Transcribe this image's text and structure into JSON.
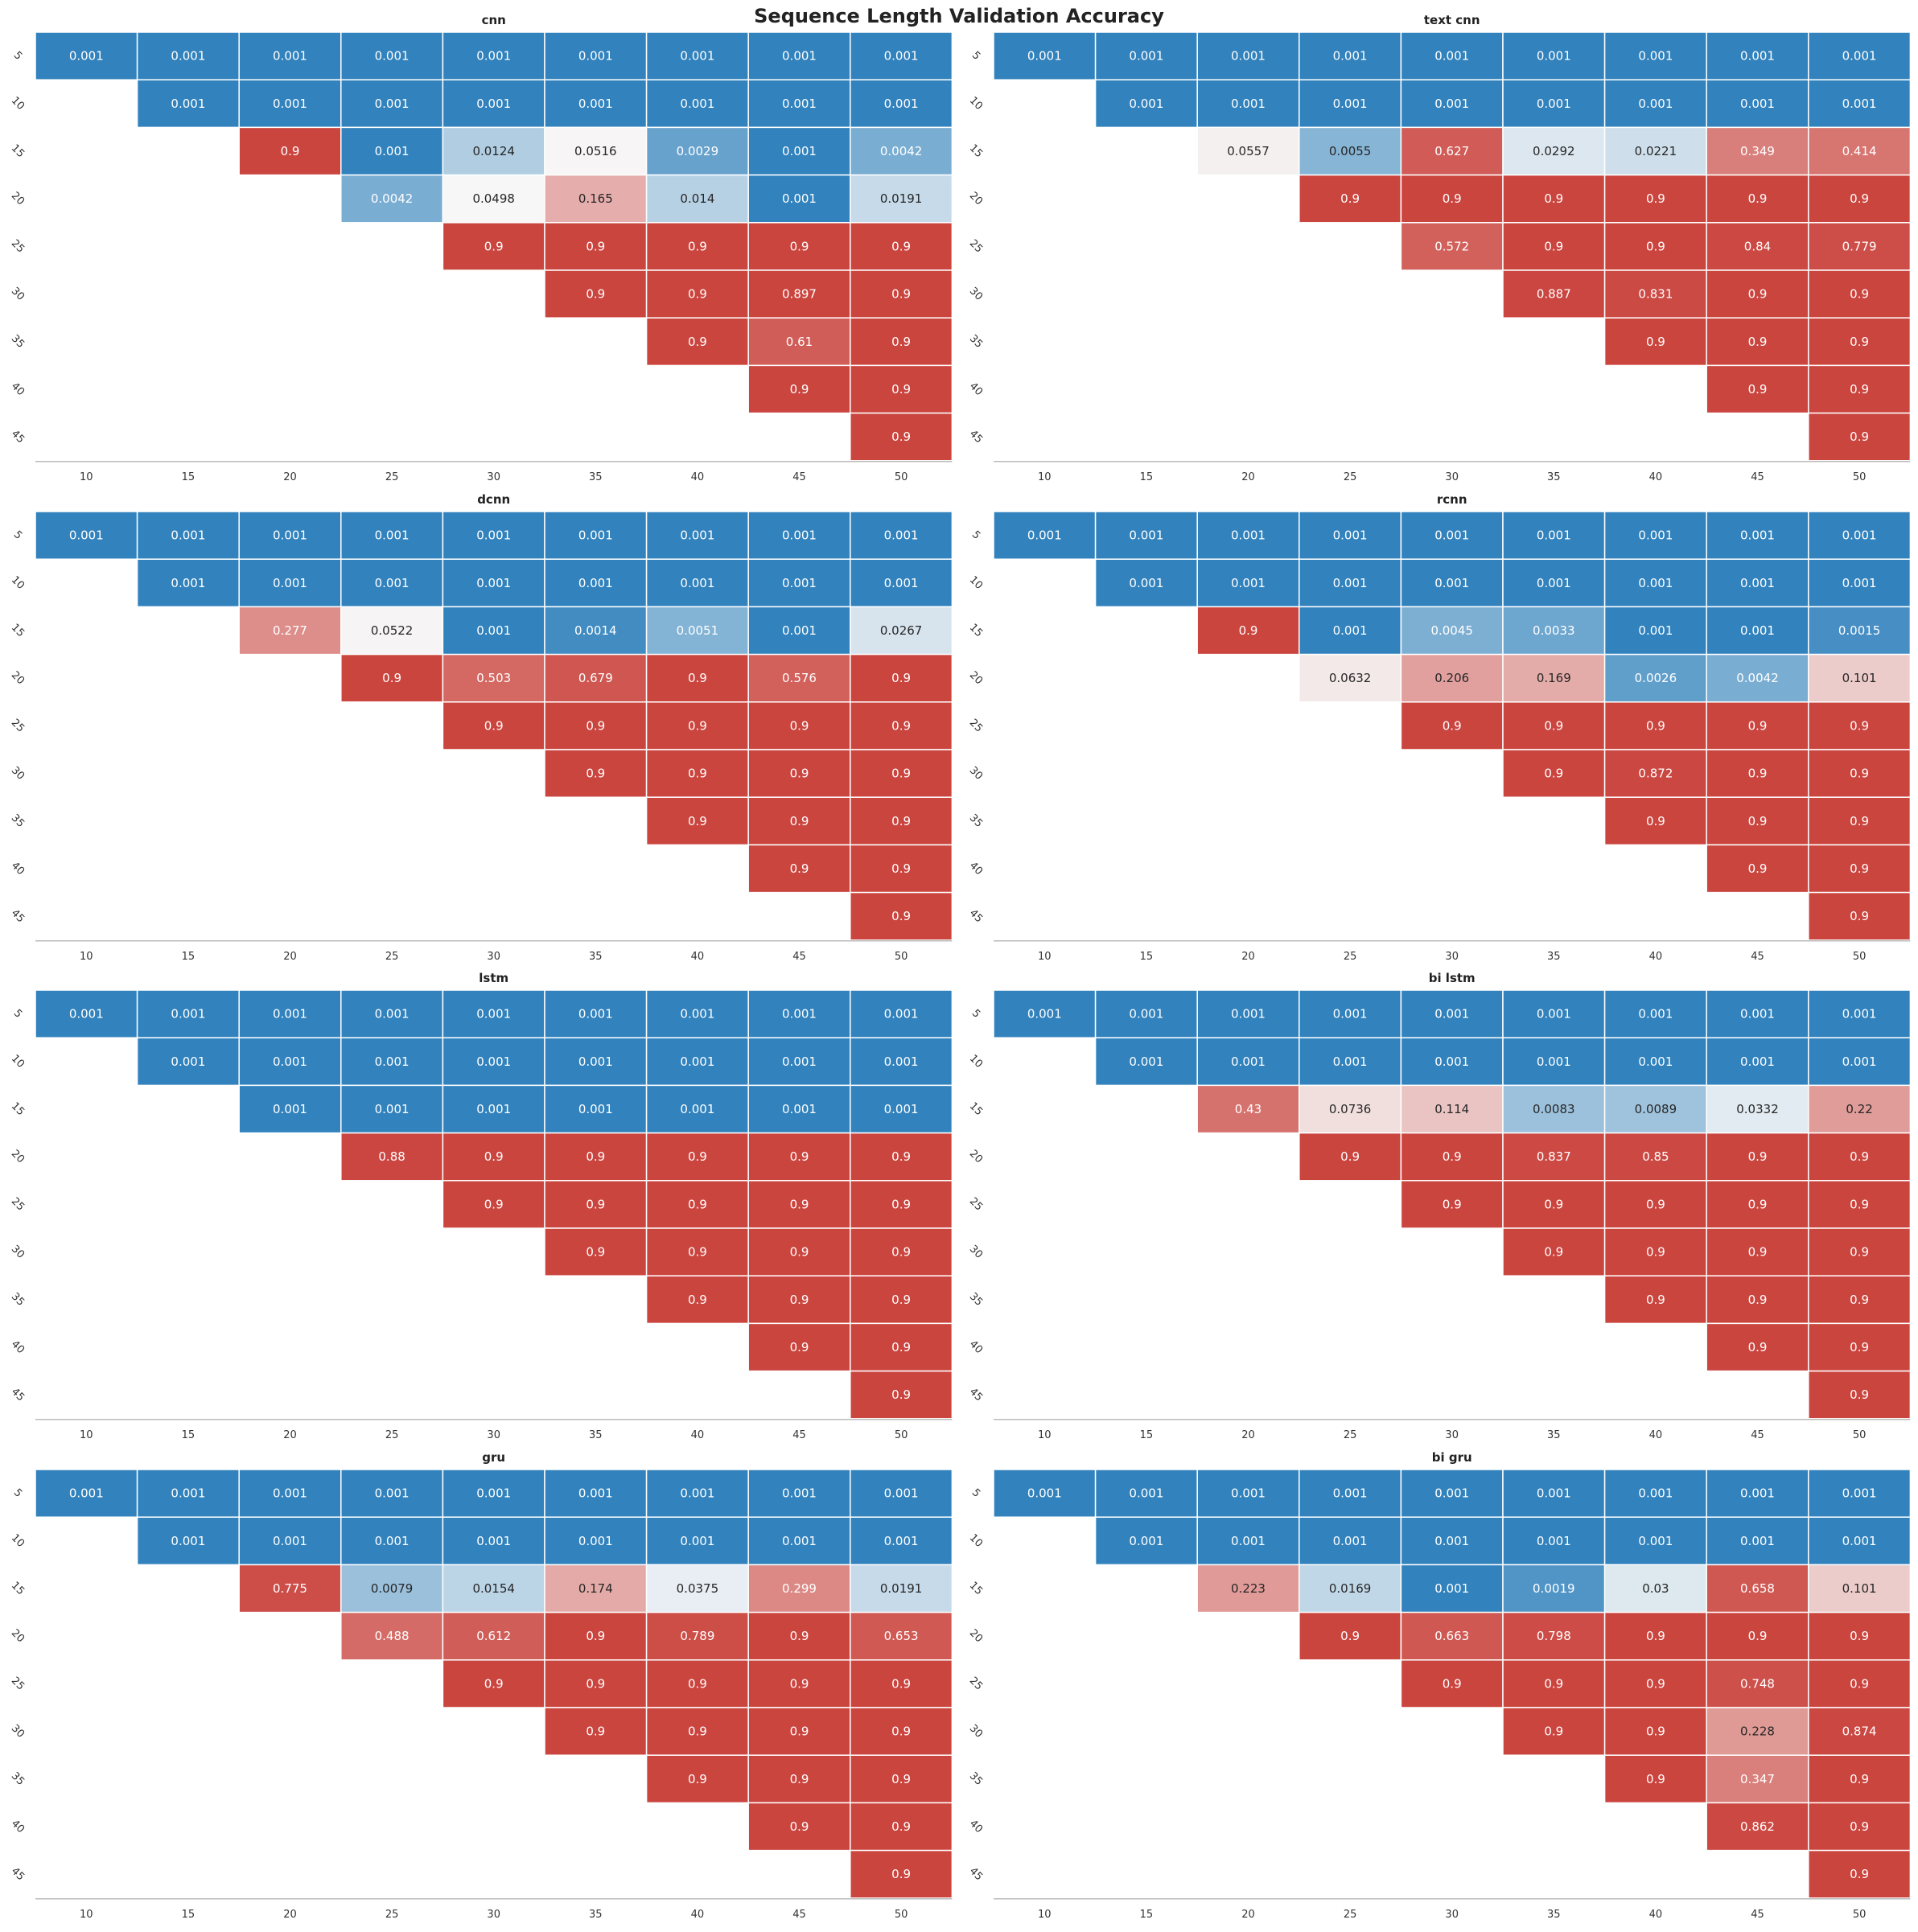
{
  "title": "Sequence Length Validation Accuracy",
  "colors": {
    "low": "#3182bd",
    "mid": "#f7f7f7",
    "high": "#cb453f",
    "grid": "#ffffff",
    "axis": "#bbbbbb"
  },
  "chart_data": [
    {
      "type": "heatmap",
      "title": "cnn",
      "x_ticks": [
        "10",
        "15",
        "20",
        "25",
        "30",
        "35",
        "40",
        "45",
        "50"
      ],
      "y_ticks": [
        "5",
        "10",
        "15",
        "20",
        "25",
        "30",
        "35",
        "40",
        "45"
      ],
      "colormap": "diverging blue-white-red",
      "cells": [
        [
          "0.001",
          "0.001",
          "0.001",
          "0.001",
          "0.001",
          "0.001",
          "0.001",
          "0.001",
          "0.001"
        ],
        [
          null,
          "0.001",
          "0.001",
          "0.001",
          "0.001",
          "0.001",
          "0.001",
          "0.001",
          "0.001"
        ],
        [
          null,
          null,
          "0.9",
          "0.001",
          "0.0124",
          "0.0516",
          "0.0029",
          "0.001",
          "0.0042"
        ],
        [
          null,
          null,
          null,
          "0.0042",
          "0.0498",
          "0.165",
          "0.014",
          "0.001",
          "0.0191"
        ],
        [
          null,
          null,
          null,
          null,
          "0.9",
          "0.9",
          "0.9",
          "0.9",
          "0.9"
        ],
        [
          null,
          null,
          null,
          null,
          null,
          "0.9",
          "0.9",
          "0.897",
          "0.9"
        ],
        [
          null,
          null,
          null,
          null,
          null,
          null,
          "0.9",
          "0.61",
          "0.9"
        ],
        [
          null,
          null,
          null,
          null,
          null,
          null,
          null,
          "0.9",
          "0.9"
        ],
        [
          null,
          null,
          null,
          null,
          null,
          null,
          null,
          null,
          "0.9"
        ]
      ]
    },
    {
      "type": "heatmap",
      "title": "text cnn",
      "x_ticks": [
        "10",
        "15",
        "20",
        "25",
        "30",
        "35",
        "40",
        "45",
        "50"
      ],
      "y_ticks": [
        "5",
        "10",
        "15",
        "20",
        "25",
        "30",
        "35",
        "40",
        "45"
      ],
      "colormap": "diverging blue-white-red",
      "cells": [
        [
          "0.001",
          "0.001",
          "0.001",
          "0.001",
          "0.001",
          "0.001",
          "0.001",
          "0.001",
          "0.001"
        ],
        [
          null,
          "0.001",
          "0.001",
          "0.001",
          "0.001",
          "0.001",
          "0.001",
          "0.001",
          "0.001"
        ],
        [
          null,
          null,
          "0.0557",
          "0.0055",
          "0.627",
          "0.0292",
          "0.0221",
          "0.349",
          "0.414"
        ],
        [
          null,
          null,
          null,
          "0.9",
          "0.9",
          "0.9",
          "0.9",
          "0.9",
          "0.9"
        ],
        [
          null,
          null,
          null,
          null,
          "0.572",
          "0.9",
          "0.9",
          "0.84",
          "0.779"
        ],
        [
          null,
          null,
          null,
          null,
          null,
          "0.887",
          "0.831",
          "0.9",
          "0.9"
        ],
        [
          null,
          null,
          null,
          null,
          null,
          null,
          "0.9",
          "0.9",
          "0.9"
        ],
        [
          null,
          null,
          null,
          null,
          null,
          null,
          null,
          "0.9",
          "0.9"
        ],
        [
          null,
          null,
          null,
          null,
          null,
          null,
          null,
          null,
          "0.9"
        ]
      ]
    },
    {
      "type": "heatmap",
      "title": "dcnn",
      "x_ticks": [
        "10",
        "15",
        "20",
        "25",
        "30",
        "35",
        "40",
        "45",
        "50"
      ],
      "y_ticks": [
        "5",
        "10",
        "15",
        "20",
        "25",
        "30",
        "35",
        "40",
        "45"
      ],
      "colormap": "diverging blue-white-red",
      "cells": [
        [
          "0.001",
          "0.001",
          "0.001",
          "0.001",
          "0.001",
          "0.001",
          "0.001",
          "0.001",
          "0.001"
        ],
        [
          null,
          "0.001",
          "0.001",
          "0.001",
          "0.001",
          "0.001",
          "0.001",
          "0.001",
          "0.001"
        ],
        [
          null,
          null,
          "0.277",
          "0.0522",
          "0.001",
          "0.0014",
          "0.0051",
          "0.001",
          "0.0267"
        ],
        [
          null,
          null,
          null,
          "0.9",
          "0.503",
          "0.679",
          "0.9",
          "0.576",
          "0.9"
        ],
        [
          null,
          null,
          null,
          null,
          "0.9",
          "0.9",
          "0.9",
          "0.9",
          "0.9"
        ],
        [
          null,
          null,
          null,
          null,
          null,
          "0.9",
          "0.9",
          "0.9",
          "0.9"
        ],
        [
          null,
          null,
          null,
          null,
          null,
          null,
          "0.9",
          "0.9",
          "0.9"
        ],
        [
          null,
          null,
          null,
          null,
          null,
          null,
          null,
          "0.9",
          "0.9"
        ],
        [
          null,
          null,
          null,
          null,
          null,
          null,
          null,
          null,
          "0.9"
        ]
      ]
    },
    {
      "type": "heatmap",
      "title": "rcnn",
      "x_ticks": [
        "10",
        "15",
        "20",
        "25",
        "30",
        "35",
        "40",
        "45",
        "50"
      ],
      "y_ticks": [
        "5",
        "10",
        "15",
        "20",
        "25",
        "30",
        "35",
        "40",
        "45"
      ],
      "colormap": "diverging blue-white-red",
      "cells": [
        [
          "0.001",
          "0.001",
          "0.001",
          "0.001",
          "0.001",
          "0.001",
          "0.001",
          "0.001",
          "0.001"
        ],
        [
          null,
          "0.001",
          "0.001",
          "0.001",
          "0.001",
          "0.001",
          "0.001",
          "0.001",
          "0.001"
        ],
        [
          null,
          null,
          "0.9",
          "0.001",
          "0.0045",
          "0.0033",
          "0.001",
          "0.001",
          "0.0015"
        ],
        [
          null,
          null,
          null,
          "0.0632",
          "0.206",
          "0.169",
          "0.0026",
          "0.0042",
          "0.101"
        ],
        [
          null,
          null,
          null,
          null,
          "0.9",
          "0.9",
          "0.9",
          "0.9",
          "0.9"
        ],
        [
          null,
          null,
          null,
          null,
          null,
          "0.9",
          "0.872",
          "0.9",
          "0.9"
        ],
        [
          null,
          null,
          null,
          null,
          null,
          null,
          "0.9",
          "0.9",
          "0.9"
        ],
        [
          null,
          null,
          null,
          null,
          null,
          null,
          null,
          "0.9",
          "0.9"
        ],
        [
          null,
          null,
          null,
          null,
          null,
          null,
          null,
          null,
          "0.9"
        ]
      ]
    },
    {
      "type": "heatmap",
      "title": "lstm",
      "x_ticks": [
        "10",
        "15",
        "20",
        "25",
        "30",
        "35",
        "40",
        "45",
        "50"
      ],
      "y_ticks": [
        "5",
        "10",
        "15",
        "20",
        "25",
        "30",
        "35",
        "40",
        "45"
      ],
      "colormap": "diverging blue-white-red",
      "cells": [
        [
          "0.001",
          "0.001",
          "0.001",
          "0.001",
          "0.001",
          "0.001",
          "0.001",
          "0.001",
          "0.001"
        ],
        [
          null,
          "0.001",
          "0.001",
          "0.001",
          "0.001",
          "0.001",
          "0.001",
          "0.001",
          "0.001"
        ],
        [
          null,
          null,
          "0.001",
          "0.001",
          "0.001",
          "0.001",
          "0.001",
          "0.001",
          "0.001"
        ],
        [
          null,
          null,
          null,
          "0.88",
          "0.9",
          "0.9",
          "0.9",
          "0.9",
          "0.9"
        ],
        [
          null,
          null,
          null,
          null,
          "0.9",
          "0.9",
          "0.9",
          "0.9",
          "0.9"
        ],
        [
          null,
          null,
          null,
          null,
          null,
          "0.9",
          "0.9",
          "0.9",
          "0.9"
        ],
        [
          null,
          null,
          null,
          null,
          null,
          null,
          "0.9",
          "0.9",
          "0.9"
        ],
        [
          null,
          null,
          null,
          null,
          null,
          null,
          null,
          "0.9",
          "0.9"
        ],
        [
          null,
          null,
          null,
          null,
          null,
          null,
          null,
          null,
          "0.9"
        ]
      ]
    },
    {
      "type": "heatmap",
      "title": "bi lstm",
      "x_ticks": [
        "10",
        "15",
        "20",
        "25",
        "30",
        "35",
        "40",
        "45",
        "50"
      ],
      "y_ticks": [
        "5",
        "10",
        "15",
        "20",
        "25",
        "30",
        "35",
        "40",
        "45"
      ],
      "colormap": "diverging blue-white-red",
      "cells": [
        [
          "0.001",
          "0.001",
          "0.001",
          "0.001",
          "0.001",
          "0.001",
          "0.001",
          "0.001",
          "0.001"
        ],
        [
          null,
          "0.001",
          "0.001",
          "0.001",
          "0.001",
          "0.001",
          "0.001",
          "0.001",
          "0.001"
        ],
        [
          null,
          null,
          "0.43",
          "0.0736",
          "0.114",
          "0.0083",
          "0.0089",
          "0.0332",
          "0.22"
        ],
        [
          null,
          null,
          null,
          "0.9",
          "0.9",
          "0.837",
          "0.85",
          "0.9",
          "0.9"
        ],
        [
          null,
          null,
          null,
          null,
          "0.9",
          "0.9",
          "0.9",
          "0.9",
          "0.9"
        ],
        [
          null,
          null,
          null,
          null,
          null,
          "0.9",
          "0.9",
          "0.9",
          "0.9"
        ],
        [
          null,
          null,
          null,
          null,
          null,
          null,
          "0.9",
          "0.9",
          "0.9"
        ],
        [
          null,
          null,
          null,
          null,
          null,
          null,
          null,
          "0.9",
          "0.9"
        ],
        [
          null,
          null,
          null,
          null,
          null,
          null,
          null,
          null,
          "0.9"
        ]
      ]
    },
    {
      "type": "heatmap",
      "title": "gru",
      "x_ticks": [
        "10",
        "15",
        "20",
        "25",
        "30",
        "35",
        "40",
        "45",
        "50"
      ],
      "y_ticks": [
        "5",
        "10",
        "15",
        "20",
        "25",
        "30",
        "35",
        "40",
        "45"
      ],
      "colormap": "diverging blue-white-red",
      "cells": [
        [
          "0.001",
          "0.001",
          "0.001",
          "0.001",
          "0.001",
          "0.001",
          "0.001",
          "0.001",
          "0.001"
        ],
        [
          null,
          "0.001",
          "0.001",
          "0.001",
          "0.001",
          "0.001",
          "0.001",
          "0.001",
          "0.001"
        ],
        [
          null,
          null,
          "0.775",
          "0.0079",
          "0.0154",
          "0.174",
          "0.0375",
          "0.299",
          "0.0191"
        ],
        [
          null,
          null,
          null,
          "0.488",
          "0.612",
          "0.9",
          "0.789",
          "0.9",
          "0.653"
        ],
        [
          null,
          null,
          null,
          null,
          "0.9",
          "0.9",
          "0.9",
          "0.9",
          "0.9"
        ],
        [
          null,
          null,
          null,
          null,
          null,
          "0.9",
          "0.9",
          "0.9",
          "0.9"
        ],
        [
          null,
          null,
          null,
          null,
          null,
          null,
          "0.9",
          "0.9",
          "0.9"
        ],
        [
          null,
          null,
          null,
          null,
          null,
          null,
          null,
          "0.9",
          "0.9"
        ],
        [
          null,
          null,
          null,
          null,
          null,
          null,
          null,
          null,
          "0.9"
        ]
      ]
    },
    {
      "type": "heatmap",
      "title": "bi gru",
      "x_ticks": [
        "10",
        "15",
        "20",
        "25",
        "30",
        "35",
        "40",
        "45",
        "50"
      ],
      "y_ticks": [
        "5",
        "10",
        "15",
        "20",
        "25",
        "30",
        "35",
        "40",
        "45"
      ],
      "colormap": "diverging blue-white-red",
      "cells": [
        [
          "0.001",
          "0.001",
          "0.001",
          "0.001",
          "0.001",
          "0.001",
          "0.001",
          "0.001",
          "0.001"
        ],
        [
          null,
          "0.001",
          "0.001",
          "0.001",
          "0.001",
          "0.001",
          "0.001",
          "0.001",
          "0.001"
        ],
        [
          null,
          null,
          "0.223",
          "0.0169",
          "0.001",
          "0.0019",
          "0.03",
          "0.658",
          "0.101"
        ],
        [
          null,
          null,
          null,
          "0.9",
          "0.663",
          "0.798",
          "0.9",
          "0.9",
          "0.9"
        ],
        [
          null,
          null,
          null,
          null,
          "0.9",
          "0.9",
          "0.9",
          "0.748",
          "0.9"
        ],
        [
          null,
          null,
          null,
          null,
          null,
          "0.9",
          "0.9",
          "0.228",
          "0.874"
        ],
        [
          null,
          null,
          null,
          null,
          null,
          null,
          "0.9",
          "0.347",
          "0.9"
        ],
        [
          null,
          null,
          null,
          null,
          null,
          null,
          null,
          "0.862",
          "0.9"
        ],
        [
          null,
          null,
          null,
          null,
          null,
          null,
          null,
          null,
          "0.9"
        ]
      ]
    }
  ]
}
